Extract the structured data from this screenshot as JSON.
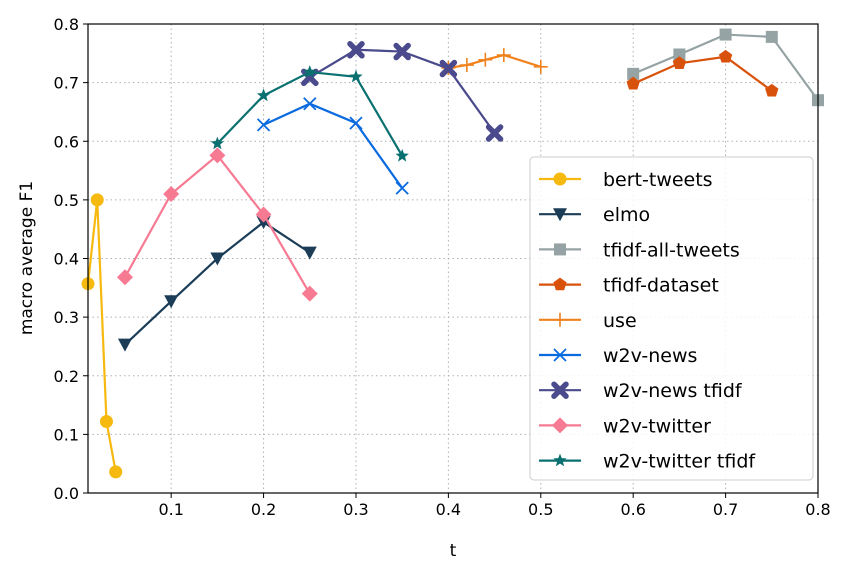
{
  "chart_data": {
    "type": "line",
    "title": "",
    "xlabel": "t",
    "ylabel": "macro average F1",
    "xlim": [
      0.01,
      0.8
    ],
    "ylim": [
      0.0,
      0.8
    ],
    "grid": true,
    "legend_position": "lower-right",
    "xticks": [
      "0.1",
      "0.2",
      "0.3",
      "0.4",
      "0.5",
      "0.6",
      "0.7",
      "0.8"
    ],
    "xtick_values": [
      0.1,
      0.2,
      0.3,
      0.4,
      0.5,
      0.6,
      0.7,
      0.8
    ],
    "yticks": [
      "0.0",
      "0.1",
      "0.2",
      "0.3",
      "0.4",
      "0.5",
      "0.6",
      "0.7",
      "0.8"
    ],
    "ytick_values": [
      0,
      0.1,
      0.2,
      0.3,
      0.4,
      0.5,
      0.6,
      0.7,
      0.8
    ],
    "series": [
      {
        "name": "bert-tweets",
        "color": "#f5b90f",
        "marker": "circle",
        "x": [
          0.01,
          0.02,
          0.03,
          0.04
        ],
        "y": [
          0.357,
          0.5,
          0.122,
          0.036
        ]
      },
      {
        "name": "elmo",
        "color": "#1b3d57",
        "marker": "triangle-down",
        "x": [
          0.05,
          0.1,
          0.15,
          0.2,
          0.25
        ],
        "y": [
          0.253,
          0.327,
          0.4,
          0.462,
          0.41
        ]
      },
      {
        "name": "tfidf-all-tweets",
        "color": "#95a3a4",
        "marker": "square",
        "x": [
          0.6,
          0.65,
          0.7,
          0.75,
          0.8
        ],
        "y": [
          0.715,
          0.748,
          0.782,
          0.778,
          0.67
        ]
      },
      {
        "name": "tfidf-dataset",
        "color": "#d9520b",
        "marker": "pentagon",
        "x": [
          0.6,
          0.65,
          0.7,
          0.75
        ],
        "y": [
          0.698,
          0.733,
          0.744,
          0.686
        ]
      },
      {
        "name": "use",
        "color": "#f0821e",
        "marker": "plus",
        "x": [
          0.4,
          0.42,
          0.44,
          0.46,
          0.5
        ],
        "y": [
          0.725,
          0.73,
          0.739,
          0.747,
          0.727
        ]
      },
      {
        "name": "w2v-news",
        "color": "#0a6ae0",
        "marker": "x",
        "x": [
          0.2,
          0.25,
          0.3,
          0.35
        ],
        "y": [
          0.628,
          0.664,
          0.631,
          0.52
        ]
      },
      {
        "name": "w2v-news tfidf",
        "color": "#4a4a8c",
        "marker": "x-filled",
        "x": [
          0.25,
          0.3,
          0.35,
          0.4,
          0.45
        ],
        "y": [
          0.709,
          0.756,
          0.753,
          0.724,
          0.614
        ]
      },
      {
        "name": "w2v-twitter",
        "color": "#f77a93",
        "marker": "diamond",
        "x": [
          0.05,
          0.1,
          0.15,
          0.2,
          0.25
        ],
        "y": [
          0.368,
          0.51,
          0.576,
          0.475,
          0.34
        ]
      },
      {
        "name": "w2v-twitter tfidf",
        "color": "#0a7070",
        "marker": "star",
        "x": [
          0.15,
          0.2,
          0.25,
          0.3,
          0.35
        ],
        "y": [
          0.596,
          0.678,
          0.718,
          0.71,
          0.575
        ]
      }
    ]
  }
}
